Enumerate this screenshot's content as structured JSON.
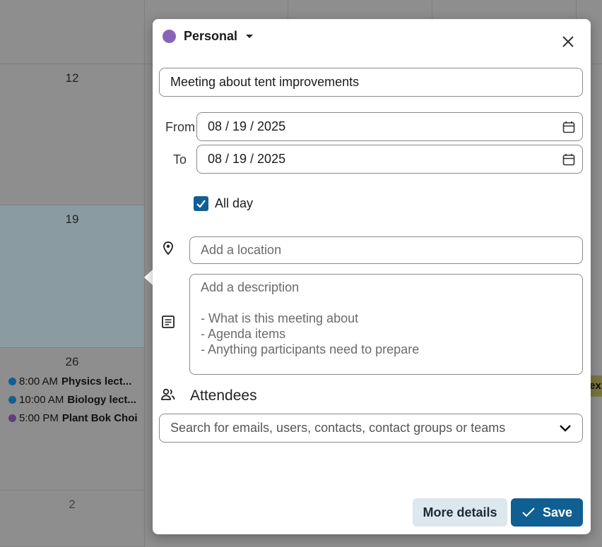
{
  "calendar": {
    "days": [
      "12",
      "19",
      "26",
      "2"
    ],
    "events": [
      {
        "time": "8:00 AM",
        "title": "Physics lect...",
        "color": "#0f6cbd"
      },
      {
        "time": "10:00 AM",
        "title": "Biology lect...",
        "color": "#0f6cbd"
      },
      {
        "time": "5:00 PM",
        "title": "Plant Bok Choi",
        "color": "#7a55b8"
      }
    ],
    "partial_tag": "lex"
  },
  "dialog": {
    "calendar_name": "Personal",
    "calendar_color": "#8764b8",
    "title_value": "Meeting about tent improvements",
    "from_label": "From",
    "from_value": "08 / 19 / 2025",
    "to_label": "To",
    "to_value": "08 / 19 / 2025",
    "all_day_label": "All day",
    "all_day_checked": true,
    "location_placeholder": "Add a location",
    "description_placeholder": [
      "Add a description",
      "",
      "- What is this meeting about",
      "- Agenda items",
      "- Anything participants need to prepare"
    ],
    "attendees_label": "Attendees",
    "attendees_placeholder": "Search for emails, users, contacts, contact groups or teams",
    "more_details_label": "More details",
    "save_label": "Save",
    "accent": "#0f5f92"
  }
}
